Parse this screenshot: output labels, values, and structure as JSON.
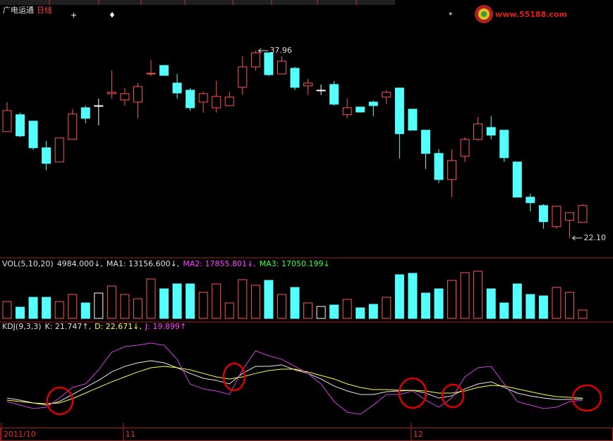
{
  "header": {
    "stock": "广电运通",
    "period": "日线"
  },
  "logo": "www.55188.com",
  "chart_data": [
    {
      "type": "candlestick",
      "open": [
        31.11,
        32.54,
        32.0,
        29.74,
        28.54,
        30.45,
        33.13,
        33.31,
        34.32,
        33.79,
        33.61,
        35.99,
        36.71,
        35.22,
        34.62,
        33.61,
        33.13,
        33.31,
        34.86,
        36.59,
        37.78,
        35.99,
        36.47,
        34.98,
        34.62,
        35.1,
        32.54,
        33.19,
        33.61,
        34.03,
        34.8,
        33.01,
        31.23,
        29.26,
        27.05,
        29.02,
        30.45,
        31.46,
        31.23,
        28.54,
        25.56,
        24.85,
        23.06,
        23.6,
        23.42
      ],
      "high": [
        33.61,
        32.72,
        32.0,
        30.33,
        30.57,
        33.01,
        33.31,
        33.91,
        36.29,
        34.8,
        35.22,
        37.19,
        36.71,
        35.99,
        34.8,
        34.5,
        35.4,
        34.5,
        37.48,
        37.96,
        37.78,
        37.48,
        36.59,
        35.58,
        35.1,
        35.4,
        33.91,
        33.19,
        33.73,
        34.62,
        34.8,
        33.01,
        31.23,
        29.62,
        29.62,
        30.63,
        32.36,
        32.42,
        31.23,
        28.54,
        25.86,
        24.97,
        24.79,
        24.25,
        24.97
      ],
      "low": [
        31.11,
        30.63,
        29.56,
        27.83,
        28.54,
        30.45,
        31.82,
        31.64,
        33.91,
        33.31,
        32.24,
        35.81,
        35.87,
        33.91,
        32.89,
        32.72,
        32.72,
        33.31,
        34.21,
        36.29,
        35.81,
        35.99,
        34.62,
        34.21,
        34.21,
        33.31,
        32.24,
        32.72,
        32.42,
        33.43,
        28.84,
        31.23,
        27.95,
        26.76,
        25.56,
        28.54,
        30.33,
        30.45,
        28.54,
        25.56,
        24.37,
        22.88,
        22.88,
        22.1,
        23.42
      ],
      "close": [
        32.89,
        30.75,
        29.74,
        28.42,
        30.57,
        32.6,
        32.24,
        33.31,
        34.44,
        34.32,
        34.92,
        36.05,
        35.87,
        34.38,
        33.13,
        34.32,
        34.09,
        34.03,
        36.59,
        37.78,
        35.93,
        37.07,
        34.86,
        35.22,
        34.62,
        33.43,
        33.13,
        32.77,
        33.31,
        34.44,
        30.93,
        31.23,
        29.26,
        27.05,
        28.66,
        30.45,
        31.76,
        30.81,
        28.9,
        25.56,
        25.09,
        23.48,
        24.79,
        24.25,
        24.85
      ],
      "up_color": "#ff5454",
      "down_color": "#54ffff",
      "flat_color": "#ffffff",
      "ylim": [
        20.78,
        41.06
      ],
      "annotations": [
        {
          "value": 37.96,
          "label": "37.96",
          "index": 19
        },
        {
          "value": 22.1,
          "label": "22.10",
          "index": 43
        }
      ]
    },
    {
      "type": "bar",
      "legend": [
        {
          "text": "VOL(5,10,20)",
          "color": "#e0e0e0"
        },
        {
          "text": "4984.000↓,",
          "color": "#e0e0e0"
        },
        {
          "text": "MA1: 13156.600↓,",
          "color": "#e0e0e0"
        },
        {
          "text": "MA2: 17855.801↓,",
          "color": "#ff40ff"
        },
        {
          "text": "MA3: 17050.199↓",
          "color": "#40ff40"
        }
      ],
      "values": [
        9960,
        6640,
        12450,
        12450,
        9960,
        14110,
        9130,
        14940,
        19090,
        14110,
        11620,
        23240,
        17430,
        20340,
        20340,
        15360,
        20340,
        9130,
        22830,
        19510,
        22410,
        14110,
        18260,
        9130,
        7060,
        7890,
        11210,
        6230,
        8300,
        12450,
        25730,
        26560,
        14940,
        17430,
        22410,
        26980,
        27810,
        17430,
        9130,
        20340,
        14110,
        13280,
        18260,
        15360,
        4984
      ],
      "ylim": [
        0,
        33200
      ]
    },
    {
      "type": "line",
      "legend": [
        {
          "text": "KDJ(9,3,3)",
          "color": "#e0e0e0"
        },
        {
          "text": "K: 21.747↑,",
          "color": "#e0e0e0"
        },
        {
          "text": "D: 22.671↓,",
          "color": "#ffff40"
        },
        {
          "text": "J: 19.899↑",
          "color": "#ff40ff"
        }
      ],
      "series": [
        {
          "color": "#e8e8e8",
          "values": [
            22.7,
            20,
            16.4,
            13.6,
            18.2,
            27.3,
            36.4,
            45.5,
            56.4,
            63.6,
            68.2,
            70.9,
            68.2,
            61.8,
            54.5,
            48.2,
            45.5,
            40.9,
            54.5,
            63.6,
            63.6,
            65.5,
            59.1,
            54.5,
            47.3,
            38.2,
            31.8,
            27.3,
            27.3,
            30.9,
            31.8,
            32.7,
            29.1,
            22.7,
            25.5,
            34.5,
            40.9,
            43.6,
            36.4,
            29.1,
            25.5,
            22.7,
            20.9,
            20.9,
            21.747
          ]
        },
        {
          "color": "#ffff40",
          "values": [
            20,
            18.2,
            16.4,
            15.5,
            16.4,
            21.8,
            29.1,
            36.4,
            43.6,
            50,
            56.4,
            61.8,
            63.6,
            61.8,
            59.1,
            54.5,
            50,
            47.3,
            50,
            54.5,
            58.2,
            60,
            60,
            56.4,
            51.8,
            47.3,
            40.9,
            36.4,
            33.6,
            33.6,
            32.7,
            32.7,
            31.8,
            29.1,
            29.1,
            31.8,
            36.4,
            39.1,
            38.2,
            34.5,
            30.9,
            27.3,
            24.5,
            23.6,
            22.671
          ]
        },
        {
          "color": "#d040e0",
          "values": [
            18.2,
            13.6,
            9.1,
            10.9,
            22.7,
            36.4,
            40.9,
            59.1,
            81.8,
            89.1,
            90.9,
            93.6,
            90.9,
            72.7,
            40.9,
            34.5,
            31.8,
            27.3,
            59.1,
            83.6,
            77.3,
            72.7,
            63.6,
            54.5,
            40.9,
            18.2,
            4.5,
            1.8,
            13.6,
            27.3,
            27.3,
            31.8,
            20,
            10.9,
            22.7,
            50,
            61.8,
            63.6,
            40.9,
            18.2,
            13.6,
            9.1,
            10.9,
            18.2,
            19.899
          ]
        }
      ],
      "ylim": [
        0,
        100
      ],
      "xticks": [
        {
          "value": 0,
          "label": "2011/10"
        },
        {
          "value": 9,
          "label": "11"
        },
        {
          "value": 31,
          "label": "12"
        }
      ]
    }
  ]
}
